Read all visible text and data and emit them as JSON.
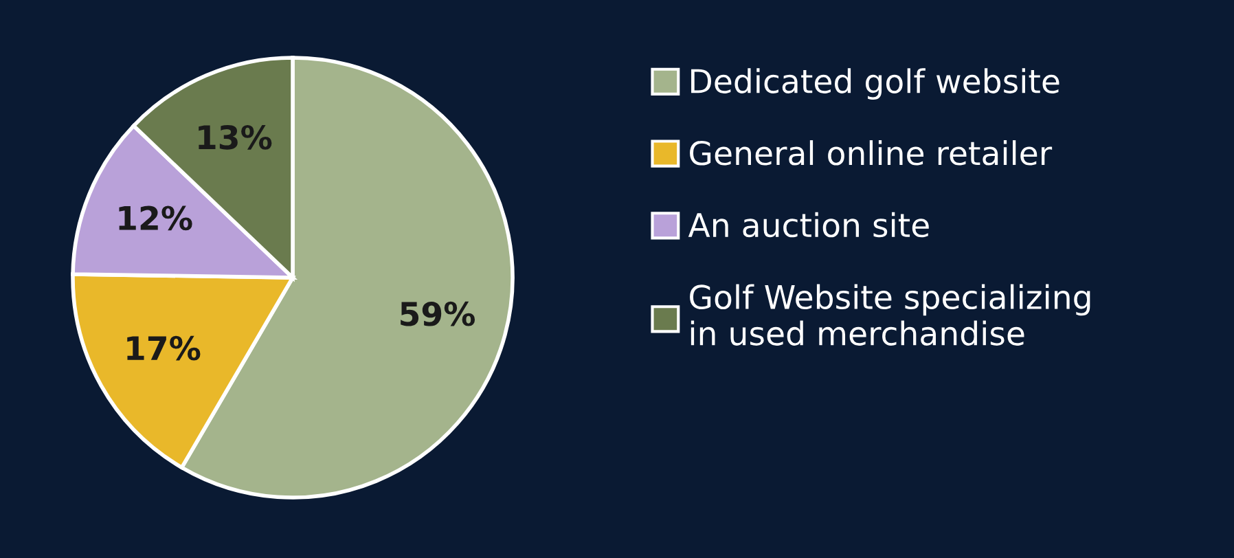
{
  "chart_data": {
    "type": "pie",
    "categories": [
      "Dedicated golf website",
      "General online retailer",
      "An auction site",
      "Golf Website specializing\nin used merchandise"
    ],
    "values": [
      59,
      17,
      12,
      13
    ],
    "value_labels": [
      "59%",
      "17%",
      "12%",
      "13%"
    ],
    "colors": [
      "#a4b48c",
      "#e9b82a",
      "#b9a1d9",
      "#6a7b4e"
    ],
    "legend": "right"
  }
}
